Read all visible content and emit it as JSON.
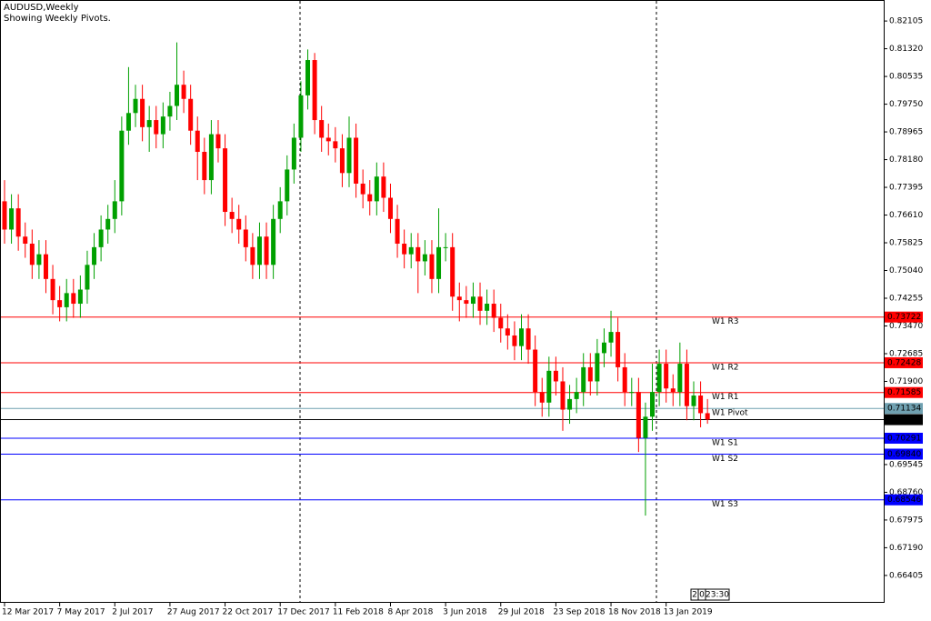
{
  "chart_data": {
    "type": "candlestick",
    "title": "AUDUSD,Weekly",
    "subtitle": "Showing Weekly Pivots.",
    "timer": [
      "2",
      "0",
      "23:30"
    ],
    "up_color": "#00a000",
    "down_color": "#ff0000",
    "categories": [
      "12 Mar 2017",
      null,
      null,
      null,
      null,
      null,
      null,
      null,
      "7 May 2017",
      null,
      null,
      null,
      null,
      null,
      null,
      null,
      "2 Jul 2017",
      null,
      null,
      null,
      null,
      null,
      null,
      null,
      "27 Aug 2017",
      null,
      null,
      null,
      null,
      null,
      null,
      null,
      "22 Oct 2017",
      null,
      null,
      null,
      null,
      null,
      null,
      null,
      "17 Dec 2017",
      null,
      null,
      null,
      null,
      null,
      null,
      null,
      "11 Feb 2018",
      null,
      null,
      null,
      null,
      null,
      null,
      null,
      "8 Apr 2018",
      null,
      null,
      null,
      null,
      null,
      null,
      null,
      "3 Jun 2018",
      null,
      null,
      null,
      null,
      null,
      null,
      null,
      "29 Jul 2018",
      null,
      null,
      null,
      null,
      null,
      null,
      null,
      "23 Sep 2018",
      null,
      null,
      null,
      null,
      null,
      null,
      null,
      "18 Nov 2018",
      null,
      null,
      null,
      null,
      null,
      null,
      null,
      "13 Jan 2019",
      null,
      null,
      null,
      null,
      null,
      null
    ],
    "opens": [
      0.77,
      0.762,
      0.768,
      0.76,
      0.758,
      0.752,
      0.755,
      0.748,
      0.742,
      0.74,
      0.744,
      0.741,
      0.745,
      0.752,
      0.757,
      0.762,
      0.765,
      0.77,
      0.79,
      0.795,
      0.799,
      0.791,
      0.793,
      0.789,
      0.794,
      0.797,
      0.803,
      0.799,
      0.79,
      0.784,
      0.776,
      0.789,
      0.785,
      0.767,
      0.765,
      0.762,
      0.757,
      0.752,
      0.76,
      0.752,
      0.765,
      0.77,
      0.779,
      0.788,
      0.8,
      0.81,
      0.793,
      0.788,
      0.787,
      0.785,
      0.778,
      0.788,
      0.775,
      0.772,
      0.77,
      0.777,
      0.771,
      0.765,
      0.758,
      0.755,
      0.757,
      0.753,
      0.755,
      0.748,
      0.757,
      0.757,
      0.743,
      0.742,
      0.741,
      0.743,
      0.739,
      0.741,
      0.737,
      0.734,
      0.732,
      0.729,
      0.734,
      0.728,
      0.716,
      0.713,
      0.722,
      0.719,
      0.711,
      0.714,
      0.716,
      0.723,
      0.719,
      0.727,
      0.73,
      0.733,
      0.723,
      0.716,
      0.716,
      0.703,
      0.709,
      0.716,
      0.724,
      0.717,
      0.716,
      0.724,
      0.712,
      0.715,
      0.71
    ],
    "highs": [
      0.776,
      0.772,
      0.772,
      0.764,
      0.762,
      0.759,
      0.759,
      0.752,
      0.746,
      0.748,
      0.748,
      0.749,
      0.756,
      0.761,
      0.766,
      0.769,
      0.776,
      0.794,
      0.808,
      0.803,
      0.803,
      0.797,
      0.797,
      0.798,
      0.801,
      0.815,
      0.807,
      0.803,
      0.794,
      0.788,
      0.793,
      0.793,
      0.789,
      0.771,
      0.769,
      0.766,
      0.761,
      0.764,
      0.764,
      0.769,
      0.774,
      0.783,
      0.792,
      0.804,
      0.813,
      0.812,
      0.797,
      0.792,
      0.791,
      0.789,
      0.794,
      0.792,
      0.779,
      0.776,
      0.781,
      0.781,
      0.775,
      0.769,
      0.762,
      0.761,
      0.761,
      0.759,
      0.759,
      0.768,
      0.761,
      0.761,
      0.747,
      0.746,
      0.747,
      0.747,
      0.745,
      0.745,
      0.741,
      0.738,
      0.736,
      0.738,
      0.738,
      0.732,
      0.72,
      0.726,
      0.726,
      0.723,
      0.718,
      0.72,
      0.727,
      0.727,
      0.731,
      0.734,
      0.739,
      0.737,
      0.727,
      0.72,
      0.72,
      0.713,
      0.724,
      0.728,
      0.728,
      0.721,
      0.73,
      0.728,
      0.719,
      0.719,
      0.714
    ],
    "lows": [
      0.758,
      0.758,
      0.756,
      0.754,
      0.748,
      0.748,
      0.744,
      0.738,
      0.736,
      0.736,
      0.737,
      0.737,
      0.741,
      0.748,
      0.753,
      0.758,
      0.761,
      0.766,
      0.786,
      0.791,
      0.787,
      0.784,
      0.785,
      0.785,
      0.79,
      0.793,
      0.795,
      0.786,
      0.776,
      0.772,
      0.772,
      0.781,
      0.763,
      0.761,
      0.758,
      0.753,
      0.748,
      0.748,
      0.748,
      0.748,
      0.761,
      0.766,
      0.775,
      0.784,
      0.796,
      0.789,
      0.784,
      0.783,
      0.781,
      0.774,
      0.774,
      0.771,
      0.768,
      0.766,
      0.766,
      0.767,
      0.761,
      0.754,
      0.751,
      0.751,
      0.744,
      0.749,
      0.744,
      0.744,
      0.753,
      0.739,
      0.736,
      0.737,
      0.737,
      0.735,
      0.735,
      0.733,
      0.73,
      0.728,
      0.725,
      0.725,
      0.724,
      0.712,
      0.709,
      0.709,
      0.715,
      0.705,
      0.707,
      0.71,
      0.712,
      0.715,
      0.715,
      0.723,
      0.726,
      0.719,
      0.712,
      0.712,
      0.699,
      0.681,
      0.705,
      0.712,
      0.713,
      0.712,
      0.712,
      0.708,
      0.708,
      0.706,
      0.707
    ],
    "closes": [
      0.762,
      0.768,
      0.76,
      0.758,
      0.752,
      0.755,
      0.748,
      0.742,
      0.74,
      0.744,
      0.741,
      0.745,
      0.752,
      0.757,
      0.762,
      0.765,
      0.77,
      0.79,
      0.795,
      0.799,
      0.791,
      0.793,
      0.789,
      0.794,
      0.797,
      0.803,
      0.799,
      0.79,
      0.784,
      0.776,
      0.789,
      0.785,
      0.767,
      0.765,
      0.762,
      0.757,
      0.752,
      0.76,
      0.752,
      0.765,
      0.77,
      0.779,
      0.788,
      0.8,
      0.81,
      0.793,
      0.788,
      0.787,
      0.785,
      0.778,
      0.788,
      0.775,
      0.772,
      0.77,
      0.777,
      0.771,
      0.765,
      0.758,
      0.755,
      0.757,
      0.753,
      0.755,
      0.748,
      0.757,
      0.757,
      0.743,
      0.742,
      0.741,
      0.743,
      0.739,
      0.741,
      0.737,
      0.734,
      0.732,
      0.729,
      0.734,
      0.728,
      0.716,
      0.713,
      0.722,
      0.719,
      0.711,
      0.714,
      0.716,
      0.723,
      0.719,
      0.727,
      0.73,
      0.733,
      0.723,
      0.716,
      0.716,
      0.703,
      0.709,
      0.716,
      0.724,
      0.717,
      0.716,
      0.724,
      0.712,
      0.715,
      0.71,
      0.7082
    ],
    "levels": [
      {
        "name": "W1 R3",
        "value": 0.73722,
        "color": "#ff0000"
      },
      {
        "name": "W1 R2",
        "value": 0.72428,
        "color": "#ff0000"
      },
      {
        "name": "W1 R1",
        "value": 0.71585,
        "color": "#ff0000"
      },
      {
        "name": "W1 Pivot",
        "value": 0.71134,
        "color": "#6fa0b0"
      },
      {
        "name": "W1 S1",
        "value": 0.70291,
        "color": "#0000ff"
      },
      {
        "name": "W1 S2",
        "value": 0.6984,
        "value_label": "0.69840",
        "color": "#0000ff"
      },
      {
        "name": "W1 S3",
        "value": 0.68546,
        "color": "#0000ff"
      }
    ],
    "current_price": 0.70817,
    "current_color": "#000000",
    "ylim": [
      0.6563,
      0.827
    ],
    "yticks": [
      0.82105,
      {
        "value": 0.8132,
        "label": "0.81320"
      },
      0.80535,
      {
        "value": 0.7975,
        "label": "0.79750"
      },
      0.78965,
      {
        "value": 0.7818,
        "label": "0.78180"
      },
      0.77395,
      {
        "value": 0.7661,
        "label": "0.76610"
      },
      0.75825,
      {
        "value": 0.7504,
        "label": "0.75040"
      },
      0.74255,
      {
        "value": 0.7347,
        "label": "0.73470"
      },
      0.72685,
      {
        "value": 0.719,
        "label": "0.71900"
      },
      0.71115,
      {
        "value": 0.7033,
        "label": "0.70330"
      },
      0.69545,
      {
        "value": 0.6876,
        "label": "0.68760"
      },
      0.67975,
      {
        "value": 0.6719,
        "label": "0.67190"
      },
      0.66405
    ]
  }
}
